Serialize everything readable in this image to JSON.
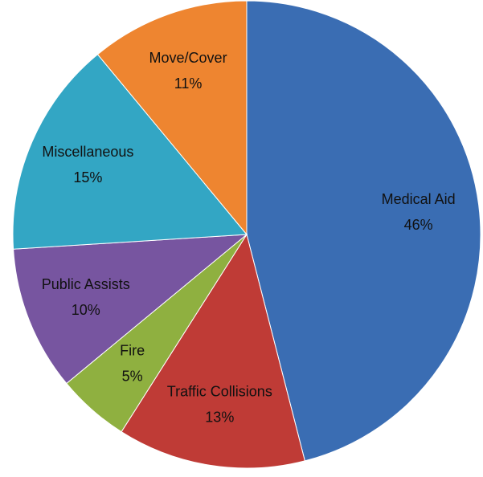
{
  "chart_data": {
    "type": "pie",
    "categories": [
      "Medical Aid",
      "Traffic Collisions",
      "Fire",
      "Public Assists",
      "Miscellaneous",
      "Move/Cover"
    ],
    "values": [
      46,
      13,
      5,
      10,
      15,
      11
    ],
    "value_labels": [
      "46%",
      "13%",
      "5%",
      "10%",
      "15%",
      "11%"
    ],
    "colors": [
      "#3a6db3",
      "#bf3b36",
      "#8fb040",
      "#7755a0",
      "#33a6c4",
      "#ee8530"
    ]
  }
}
